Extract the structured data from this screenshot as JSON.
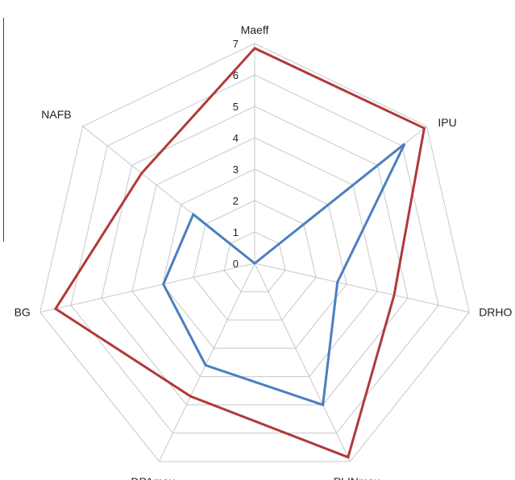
{
  "chart_data": {
    "type": "radar",
    "axes": [
      "Maeff",
      "IPU",
      "DRHO",
      "PLINmax",
      "DPAmax",
      "BG",
      "NAFB"
    ],
    "ticks": [
      "0",
      "1",
      "2",
      "3",
      "4",
      "5",
      "6",
      "7"
    ],
    "rmax": 7,
    "grid": true,
    "legend": "none",
    "series": [
      {
        "color": "#b03a3a",
        "values": [
          6.85,
          6.9,
          4.55,
          6.85,
          4.7,
          6.5,
          4.6
        ]
      },
      {
        "color": "#4a7fc0",
        "values": [
          0.0,
          6.1,
          2.7,
          5.0,
          3.6,
          2.98,
          2.5
        ]
      }
    ]
  }
}
